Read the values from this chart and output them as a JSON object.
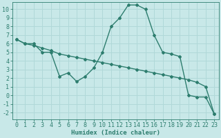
{
  "line1_x": [
    0,
    1,
    2,
    3,
    4,
    5,
    6,
    7,
    8,
    9,
    10,
    11,
    12,
    13,
    14,
    15,
    16,
    17,
    18,
    19,
    20,
    21,
    22,
    23
  ],
  "line1_y": [
    6.5,
    6.0,
    6.0,
    5.0,
    5.0,
    2.2,
    2.6,
    1.6,
    2.2,
    3.2,
    5.0,
    8.0,
    9.0,
    10.5,
    10.5,
    10.0,
    7.0,
    5.0,
    4.8,
    4.5,
    0.0,
    -0.2,
    -0.2,
    -2.2
  ],
  "line2_x": [
    0,
    1,
    2,
    3,
    4,
    5,
    6,
    7,
    8,
    9,
    10,
    11,
    12,
    13,
    14,
    15,
    16,
    17,
    18,
    19,
    20,
    21,
    22,
    23
  ],
  "line2_y": [
    6.5,
    6.0,
    5.8,
    5.5,
    5.2,
    4.8,
    4.6,
    4.4,
    4.2,
    4.0,
    3.8,
    3.6,
    3.4,
    3.2,
    3.0,
    2.8,
    2.6,
    2.4,
    2.2,
    2.0,
    1.8,
    1.5,
    1.0,
    -2.2
  ],
  "line_color": "#2d7d6e",
  "bg_color": "#c8e8e8",
  "grid_color": "#b0d8d8",
  "xlabel": "Humidex (Indice chaleur)",
  "ylim": [
    -2.8,
    10.8
  ],
  "xlim": [
    -0.5,
    23.5
  ],
  "yticks": [
    -2,
    -1,
    0,
    1,
    2,
    3,
    4,
    5,
    6,
    7,
    8,
    9,
    10
  ],
  "xticks": [
    0,
    1,
    2,
    3,
    4,
    5,
    6,
    7,
    8,
    9,
    10,
    11,
    12,
    13,
    14,
    15,
    16,
    17,
    18,
    19,
    20,
    21,
    22,
    23
  ],
  "font_size": 6.0,
  "marker": "D",
  "marker_size": 2.0,
  "line_width": 1.0
}
